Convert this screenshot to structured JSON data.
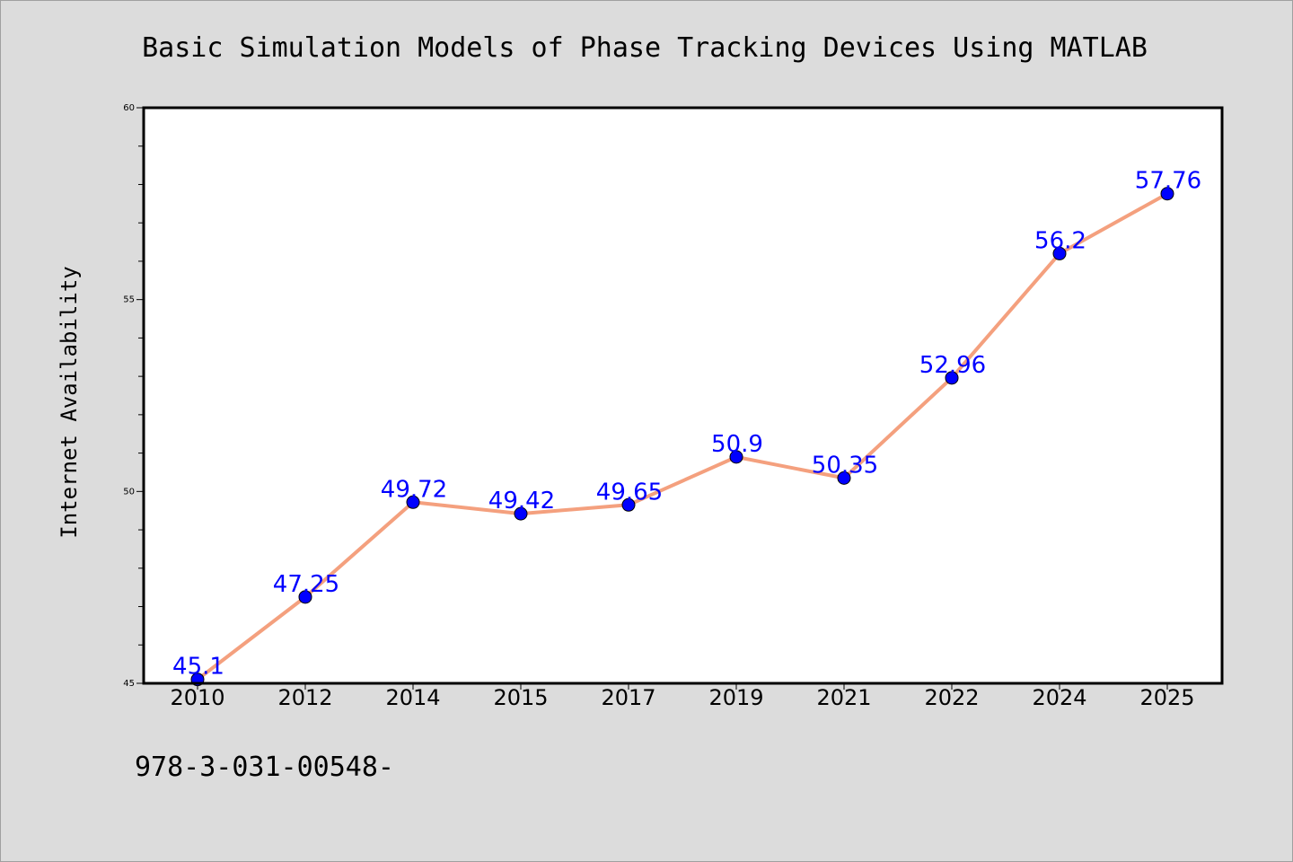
{
  "chart_data": {
    "type": "line",
    "title": "Basic Simulation Models of Phase Tracking Devices Using MATLAB",
    "xlabel": "",
    "ylabel": "Internet Availability",
    "categories": [
      "2010",
      "2012",
      "2014",
      "2015",
      "2017",
      "2019",
      "2021",
      "2022",
      "2024",
      "2025"
    ],
    "values": [
      45.1,
      47.25,
      49.72,
      49.42,
      49.65,
      50.9,
      50.35,
      52.96,
      56.2,
      57.76
    ],
    "data_labels": [
      "45.1",
      "47.25",
      "49.72",
      "49.42",
      "49.65",
      "50.9",
      "50.35",
      "52.96",
      "56.2",
      "57.76"
    ],
    "ylim": [
      45,
      60
    ],
    "yticks": [
      "45",
      "50",
      "55",
      "60"
    ],
    "grid": false,
    "legend": "none",
    "colors": {
      "line": "#f4a07e",
      "marker": "#0000ff",
      "data_label": "#0000ff",
      "background": "#dcdcdc",
      "plot_area": "#ffffff"
    }
  },
  "footer": "978-3-031-00548-"
}
